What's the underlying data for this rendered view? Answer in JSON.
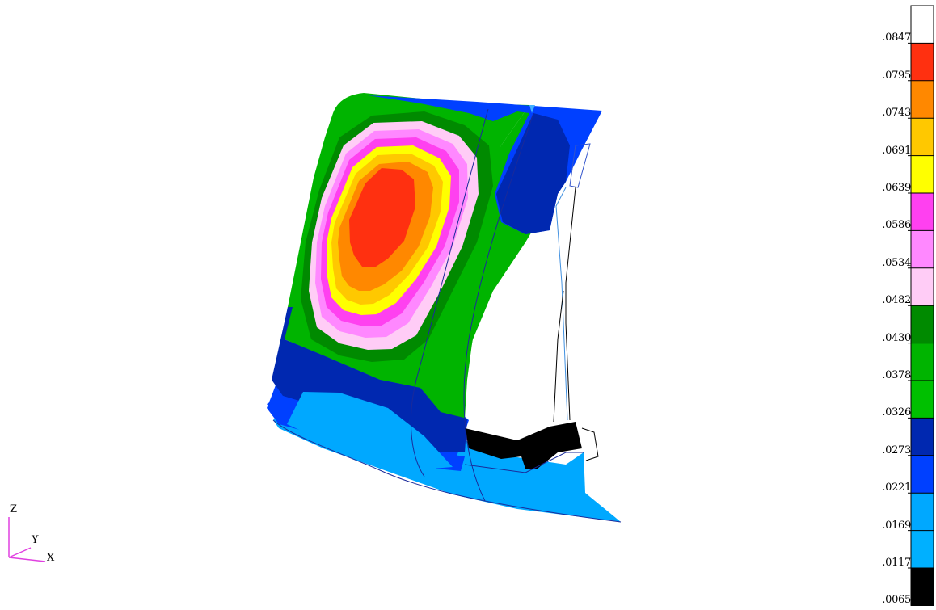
{
  "legend": {
    "colors": [
      "#ffffff",
      "#ff3010",
      "#ff8800",
      "#ffc800",
      "#ffff00",
      "#ff40f0",
      "#ff88ff",
      "#ffccf6",
      "#008a00",
      "#00b400",
      "#00c000",
      "#0028b0",
      "#0040ff",
      "#00a8ff",
      "#00b0ff",
      "#000000"
    ],
    "labels": [
      ".0847",
      ".0795",
      ".0743",
      ".0691",
      ".0639",
      ".0586",
      ".0534",
      ".0482",
      ".0430",
      ".0378",
      ".0326",
      ".0273",
      ".0221",
      ".0169",
      ".0117",
      ".0065"
    ]
  },
  "triad": {
    "z_label": "Z",
    "y_label": "Y",
    "x_label": "X",
    "color": "#e040e0"
  },
  "model": {
    "colors": {
      "red": "#ff3010",
      "orange": "#ff8800",
      "gold": "#ffc800",
      "yellow": "#ffff00",
      "magenta": "#ff40f0",
      "pink": "#ff88ff",
      "light_pink": "#ffccf6",
      "dark_green": "#008a00",
      "green": "#00b400",
      "navy": "#0028b0",
      "blue": "#0040ff",
      "cyan": "#00a8ff",
      "black": "#000000",
      "outline": "#1a2a9a"
    }
  }
}
